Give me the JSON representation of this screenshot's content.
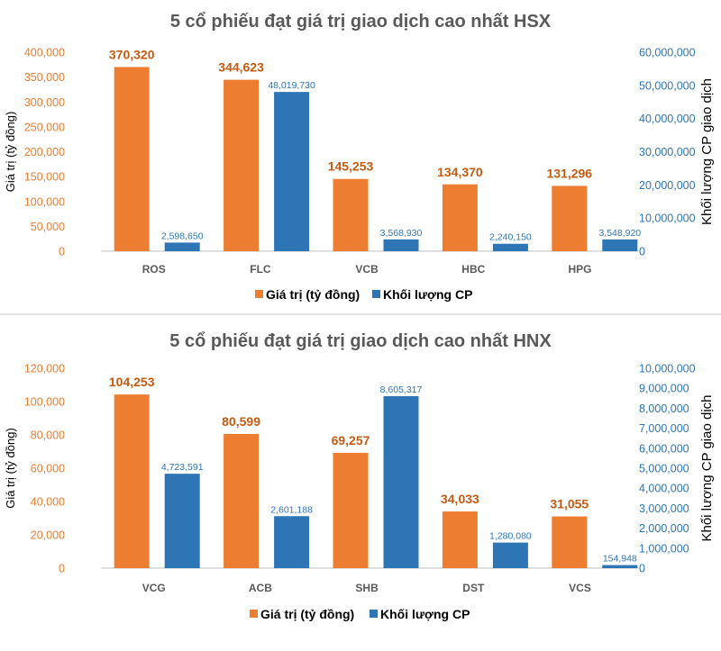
{
  "colors": {
    "value_bar": "#ED7D31",
    "volume_bar": "#2E75B6",
    "value_label": "#C55A11",
    "volume_label": "#2E75B6",
    "baseline": "#BFBFBF",
    "separator": "#D9D9D9"
  },
  "chart_data": [
    {
      "type": "bar",
      "title": "5 cổ phiếu đạt giá trị giao dịch cao nhất HSX",
      "categories": [
        "ROS",
        "FLC",
        "VCB",
        "HBC",
        "HPG"
      ],
      "series": [
        {
          "name": "Giá trị (tỷ đồng)",
          "axis": "left",
          "values": [
            370320,
            344623,
            145253,
            134370,
            131296
          ]
        },
        {
          "name": "Khối lượng CP",
          "axis": "right",
          "values": [
            2598650,
            48019730,
            3568930,
            2240150,
            3548920
          ]
        }
      ],
      "ylabel": "Giá trị (tỷ đồng)",
      "y2label": "Khối lượng CP giao dịch",
      "ylim": [
        0,
        400000
      ],
      "y2lim": [
        0,
        60000000
      ],
      "yticks": [
        0,
        50000,
        100000,
        150000,
        200000,
        250000,
        300000,
        350000,
        400000
      ],
      "y2ticks": [
        0,
        10000000,
        20000000,
        30000000,
        40000000,
        50000000,
        60000000
      ],
      "grid": false,
      "legend": "bottom"
    },
    {
      "type": "bar",
      "title": "5 cổ phiếu đạt giá trị giao dịch cao nhất HNX",
      "categories": [
        "VCG",
        "ACB",
        "SHB",
        "DST",
        "VCS"
      ],
      "series": [
        {
          "name": "Giá trị (tỷ đồng)",
          "axis": "left",
          "values": [
            104253,
            80599,
            69257,
            34033,
            31055
          ]
        },
        {
          "name": "Khối lượng CP",
          "axis": "right",
          "values": [
            4723591,
            2601188,
            8605317,
            1280080,
            154948
          ]
        }
      ],
      "ylabel": "Giá trị (tỷ đồng)",
      "y2label": "Khối lượng CP giao dịch",
      "ylim": [
        0,
        120000
      ],
      "y2lim": [
        0,
        10000000
      ],
      "yticks": [
        0,
        20000,
        40000,
        60000,
        80000,
        100000,
        120000
      ],
      "y2ticks": [
        0,
        1000000,
        2000000,
        3000000,
        4000000,
        5000000,
        6000000,
        7000000,
        8000000,
        9000000,
        10000000
      ],
      "grid": false,
      "legend": "bottom"
    }
  ]
}
